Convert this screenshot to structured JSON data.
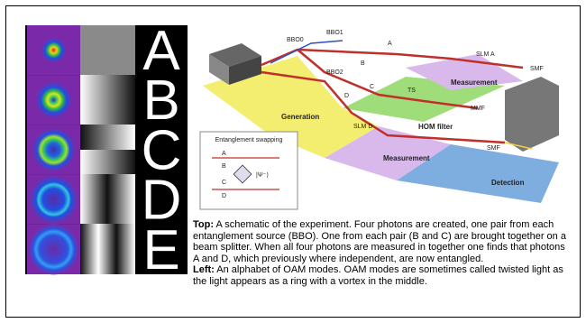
{
  "letters": [
    "A",
    "B",
    "C",
    "D",
    "E"
  ],
  "schematic": {
    "labels": [
      "BBO0",
      "BBO1",
      "A",
      "B",
      "BBO2",
      "C",
      "D",
      "SLM A",
      "SMF",
      "Measurement",
      "Generation",
      "TS",
      "MMF",
      "HOM filter",
      "SLM D",
      "Measurement",
      "SMF",
      "Detection"
    ]
  },
  "inset": {
    "title": "Entanglement swapping",
    "labels": [
      "A",
      "B",
      "C",
      "D",
      "|Ψ⁻⟩"
    ]
  },
  "caption": {
    "top_label": "Top:",
    "top_text": "A schematic of the experiment. Four photons are created, one pair from each entanglement source (BBO). One from each pair (B and C) are brought together on a beam splitter. When all four photons are measured in together one finds that photons A and D, which previously where independent, are now entangled.",
    "left_label": "Left:",
    "left_text": "An alphabet of OAM modes. OAM modes are sometimes called twisted light as the light appears as a ring with a vortex in the middle."
  }
}
